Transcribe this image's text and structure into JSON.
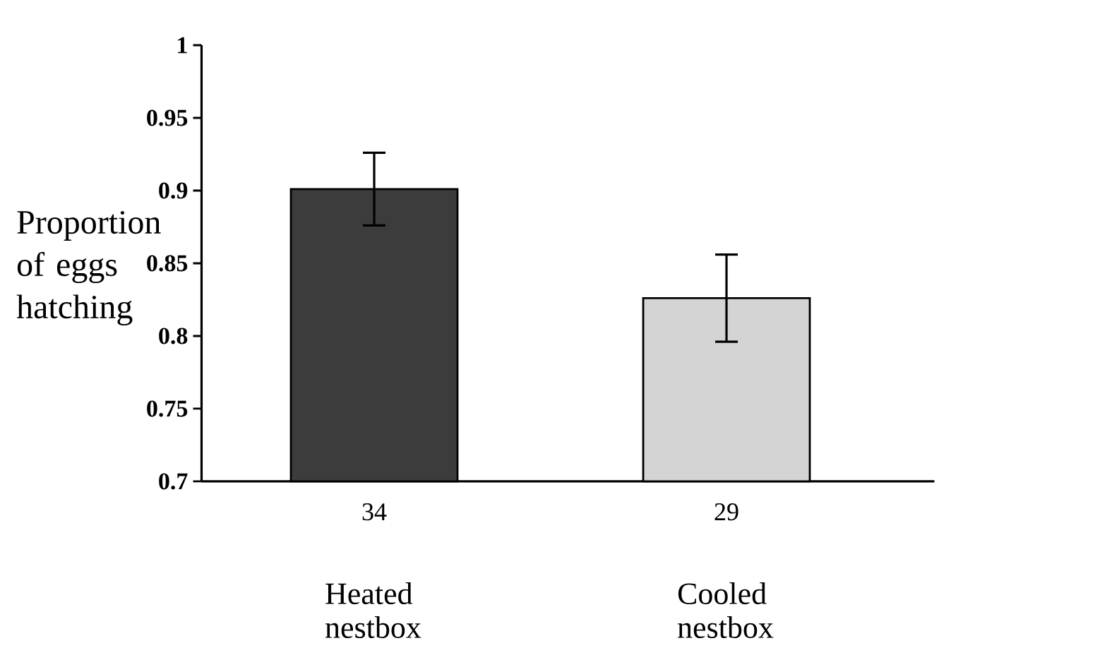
{
  "chart_data": {
    "type": "bar",
    "ylabel": "Proportion of eggs hatching",
    "categories": [
      "Heated nestbox",
      "Cooled nestbox"
    ],
    "values": [
      0.901,
      0.826
    ],
    "errors": [
      0.025,
      0.03
    ],
    "colors": [
      "#3c3c3c",
      "#d4d4d4"
    ],
    "ylim": [
      0.7,
      1
    ],
    "yticks": [
      0.7,
      0.75,
      0.8,
      0.85,
      0.9,
      0.95,
      1
    ],
    "annotations": [
      "34",
      "29"
    ]
  }
}
